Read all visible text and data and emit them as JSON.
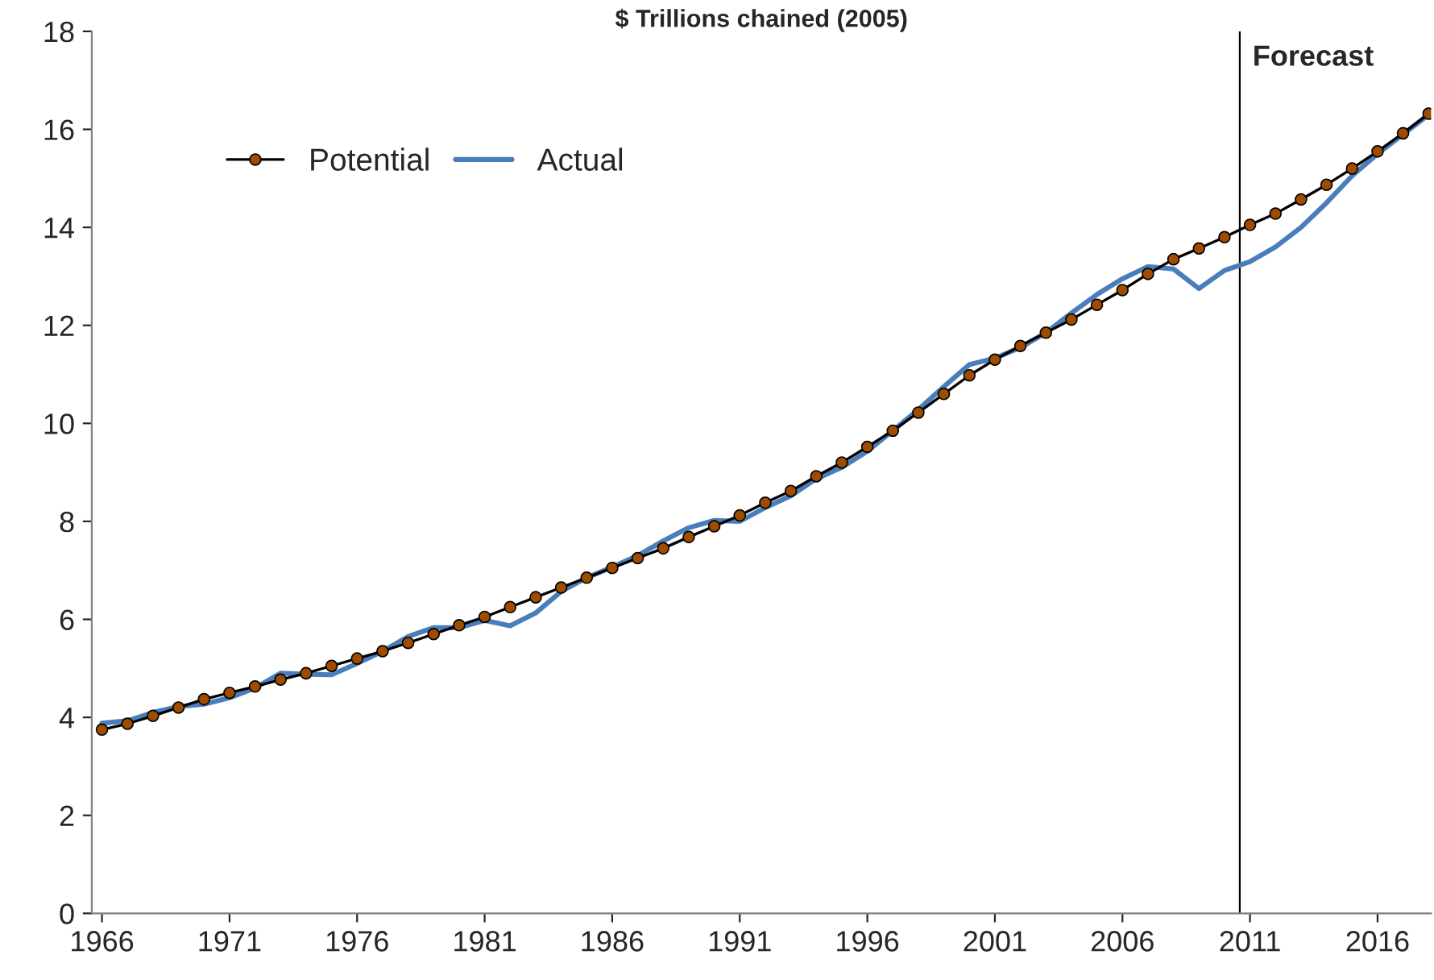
{
  "chart_data": {
    "type": "line",
    "title": "$ Trillions chained (2005)",
    "x": [
      1966,
      1967,
      1968,
      1969,
      1970,
      1971,
      1972,
      1973,
      1974,
      1975,
      1976,
      1977,
      1978,
      1979,
      1980,
      1981,
      1982,
      1983,
      1984,
      1985,
      1986,
      1987,
      1988,
      1989,
      1990,
      1991,
      1992,
      1993,
      1994,
      1995,
      1996,
      1997,
      1998,
      1999,
      2000,
      2001,
      2002,
      2003,
      2004,
      2005,
      2006,
      2007,
      2008,
      2009,
      2010,
      2011,
      2012,
      2013,
      2014,
      2015,
      2016,
      2017,
      2018
    ],
    "series": [
      {
        "name": "Potential",
        "color": "#a04c00",
        "marker": "circle",
        "values": [
          3.75,
          3.87,
          4.03,
          4.2,
          4.37,
          4.5,
          4.63,
          4.77,
          4.9,
          5.05,
          5.2,
          5.35,
          5.52,
          5.7,
          5.88,
          6.05,
          6.25,
          6.45,
          6.65,
          6.85,
          7.05,
          7.25,
          7.45,
          7.68,
          7.9,
          8.12,
          8.38,
          8.62,
          8.92,
          9.2,
          9.52,
          9.85,
          10.22,
          10.6,
          10.98,
          11.3,
          11.58,
          11.85,
          12.12,
          12.42,
          12.72,
          13.05,
          13.35,
          13.57,
          13.8,
          14.05,
          14.28,
          14.57,
          14.87,
          15.2,
          15.55,
          15.92,
          16.32
        ]
      },
      {
        "name": "Actual",
        "color": "#4a7ebb",
        "values": [
          3.88,
          3.93,
          4.1,
          4.22,
          4.27,
          4.4,
          4.6,
          4.9,
          4.88,
          4.87,
          5.1,
          5.35,
          5.65,
          5.83,
          5.83,
          5.98,
          5.87,
          6.13,
          6.57,
          6.85,
          7.07,
          7.3,
          7.6,
          7.87,
          8.02,
          8.0,
          8.28,
          8.52,
          8.87,
          9.1,
          9.43,
          9.85,
          10.28,
          10.75,
          11.2,
          11.33,
          11.55,
          11.85,
          12.25,
          12.63,
          12.95,
          13.2,
          13.15,
          12.75,
          13.12,
          13.3,
          13.6,
          14.0,
          14.5,
          15.05,
          15.5,
          15.9,
          16.3
        ]
      }
    ],
    "xlim": [
      1965.6,
      2018.1
    ],
    "xticks": [
      1966,
      1971,
      1976,
      1981,
      1986,
      1991,
      1996,
      2001,
      2006,
      2011,
      2016
    ],
    "ylim": [
      0,
      18
    ],
    "yticks": [
      0,
      2,
      4,
      6,
      8,
      10,
      12,
      14,
      16,
      18
    ],
    "ref_lines": [
      {
        "axis": "x",
        "value": 2010.6,
        "label": "Forecast",
        "color": "#000000"
      }
    ],
    "legend": "top left",
    "grid": false
  }
}
